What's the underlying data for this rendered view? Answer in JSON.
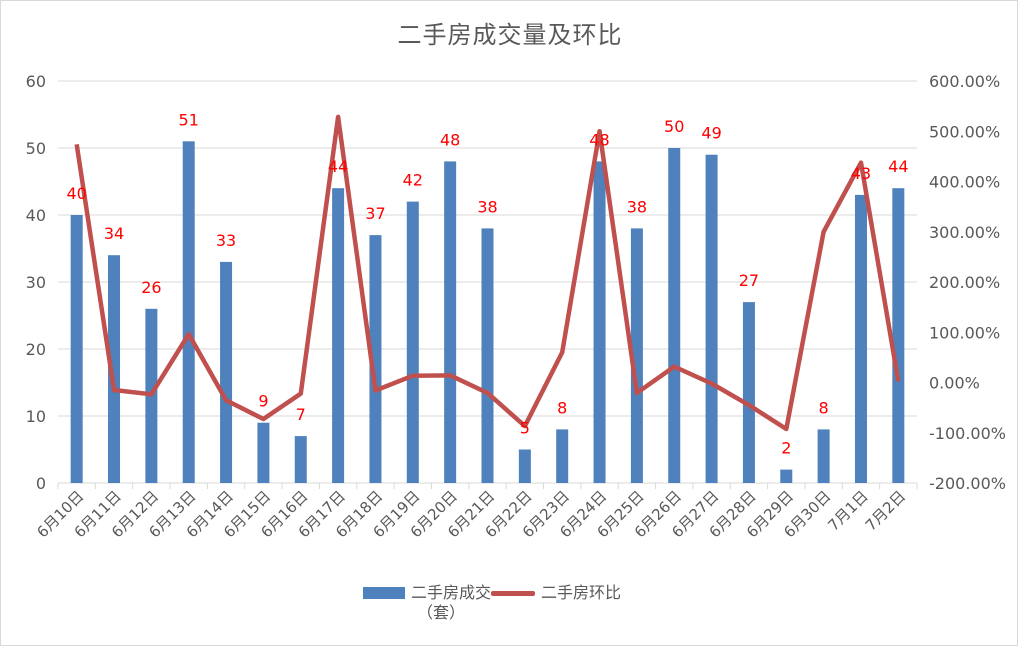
{
  "chart_data": {
    "type": "bar+line",
    "title": "二手房成交量及环比",
    "categories": [
      "6月10日",
      "6月11日",
      "6月12日",
      "6月13日",
      "6月14日",
      "6月15日",
      "6月16日",
      "6月17日",
      "6月18日",
      "6月19日",
      "6月20日",
      "6月21日",
      "6月22日",
      "6月23日",
      "6月24日",
      "6月25日",
      "6月26日",
      "6月27日",
      "6月28日",
      "6月29日",
      "6月30日",
      "7月1日",
      "7月2日"
    ],
    "series": [
      {
        "name": "二手房成交（套）",
        "type": "bar",
        "axis": "left",
        "color": "#4f81bd",
        "values": [
          40,
          34,
          26,
          51,
          33,
          9,
          7,
          44,
          37,
          42,
          48,
          38,
          5,
          8,
          48,
          38,
          50,
          49,
          27,
          2,
          8,
          43,
          44
        ],
        "data_labels": true,
        "label_color": "#ff0000"
      },
      {
        "name": "二手房环比",
        "type": "line",
        "axis": "right",
        "color": "#c0504d",
        "unit": "%",
        "values": [
          474,
          -15,
          -23.5,
          96.2,
          -35.3,
          -72.7,
          -22.2,
          528.6,
          -15.9,
          13.5,
          14.3,
          -20.8,
          -86.8,
          60,
          500,
          -20.8,
          31.6,
          -2,
          -44.9,
          -92.6,
          300,
          437.5,
          2.3
        ]
      }
    ],
    "left_axis": {
      "min": 0,
      "max": 60,
      "step": 10,
      "ticks": [
        "0",
        "10",
        "20",
        "30",
        "40",
        "50",
        "60"
      ]
    },
    "right_axis": {
      "min": -200,
      "max": 600,
      "step": 100,
      "ticks": [
        "-200.00%",
        "-100.00%",
        "0.00%",
        "100.00%",
        "200.00%",
        "300.00%",
        "400.00%",
        "500.00%",
        "600.00%"
      ]
    },
    "xlabel": "",
    "ylabel": "",
    "grid": true,
    "legend_position": "bottom",
    "legend": [
      {
        "label": "二手房成交",
        "sub": "（套）",
        "kind": "bar"
      },
      {
        "label": "二手房环比",
        "kind": "line"
      }
    ]
  }
}
